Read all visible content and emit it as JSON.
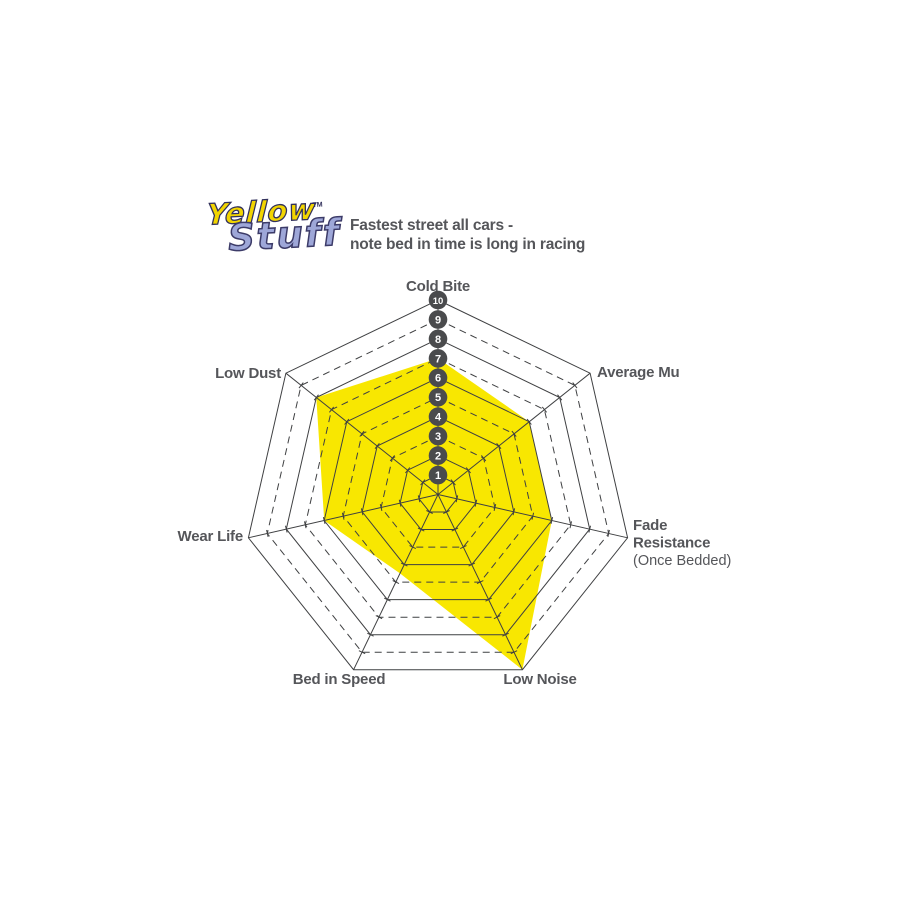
{
  "logo": {
    "word1": "Yellow",
    "trademark": "TM",
    "word2": "Stuff",
    "word1_color": "#F2D500",
    "word2_color": "#9EA7D8"
  },
  "header": {
    "note_line1": "Fastest street all cars -",
    "note_line2": "note bed in time is long in racing"
  },
  "chart_data": {
    "type": "radar",
    "categories": [
      "Cold Bite",
      "Average Mu",
      "Fade Resistance (Once Bedded)",
      "Low Noise",
      "Bed in Speed",
      "Wear Life",
      "Low Dust"
    ],
    "series": [
      {
        "name": "Yellowstuff",
        "values": [
          7,
          6,
          6,
          10,
          4.5,
          6,
          8
        ]
      }
    ],
    "axis_range": [
      0,
      10
    ],
    "ring_ticks": [
      1,
      2,
      3,
      4,
      5,
      6,
      7,
      8,
      9,
      10
    ],
    "tick_badge_labels": [
      "1",
      "2",
      "3",
      "4",
      "5",
      "6",
      "7",
      "8",
      "9",
      "10"
    ],
    "grid": {
      "shape": "heptagon",
      "solid_rings": [
        1,
        2,
        4,
        6,
        8,
        10
      ],
      "dashed_rings": [
        3,
        5,
        7,
        9
      ],
      "line_color": "#3F4042"
    },
    "legend": "none",
    "fill_color": "#F8E701",
    "badge_color": "#4A4B4D",
    "badge_text_color": "#FFFFFF",
    "label_color": "#55565A",
    "axis_labels": [
      {
        "lines": [
          "Cold Bite"
        ]
      },
      {
        "lines": [
          "Average Mu"
        ]
      },
      {
        "lines": [
          "Fade",
          "Resistance"
        ],
        "sub": "(Once Bedded)"
      },
      {
        "lines": [
          "Low Noise"
        ]
      },
      {
        "lines": [
          "Bed in Speed"
        ]
      },
      {
        "lines": [
          "Wear Life"
        ]
      },
      {
        "lines": [
          "Low Dust"
        ]
      }
    ]
  }
}
